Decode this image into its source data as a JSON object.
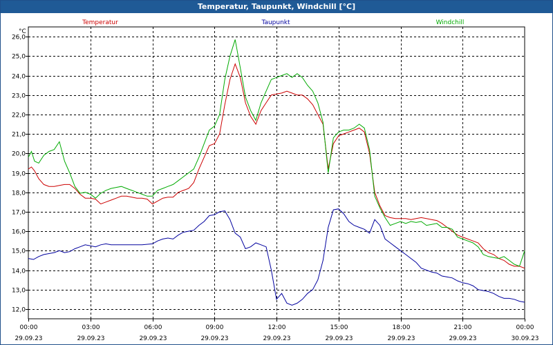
{
  "window": {
    "title": "Temperatur, Taupunkt, Windchill [°C]"
  },
  "chart_data": {
    "type": "line",
    "title": "Temperatur, Taupunkt, Windchill [°C]",
    "ylabel": "°C",
    "ylim": [
      11.5,
      26.5
    ],
    "xlim": [
      "2023-09-29 00:00",
      "2023-09-30 00:00"
    ],
    "yticks": [
      "12,0",
      "13,0",
      "14,0",
      "15,0",
      "16,0",
      "17,0",
      "18,0",
      "19,0",
      "20,0",
      "21,0",
      "22,0",
      "23,0",
      "24,0",
      "25,0",
      "26,0"
    ],
    "xticks": [
      {
        "time": "00:00",
        "date": "29.09.23"
      },
      {
        "time": "03:00",
        "date": "29.09.23"
      },
      {
        "time": "06:00",
        "date": "29.09.23"
      },
      {
        "time": "09:00",
        "date": "29.09.23"
      },
      {
        "time": "12:00",
        "date": "29.09.23"
      },
      {
        "time": "15:00",
        "date": "29.09.23"
      },
      {
        "time": "18:00",
        "date": "29.09.23"
      },
      {
        "time": "21:00",
        "date": "29.09.23"
      },
      {
        "time": "00:00",
        "date": "30.09.23"
      }
    ],
    "grid": true,
    "legend_position": "top",
    "series": [
      {
        "name": "Temperatur",
        "color": "#cc0000",
        "x": [
          0,
          0.15,
          0.3,
          0.5,
          0.75,
          1,
          1.25,
          1.5,
          1.75,
          2,
          2.25,
          2.5,
          2.75,
          3,
          3.25,
          3.5,
          3.75,
          4,
          4.25,
          4.5,
          4.75,
          5,
          5.25,
          5.5,
          5.75,
          6,
          6.25,
          6.5,
          6.75,
          7,
          7.25,
          7.5,
          7.75,
          8,
          8.25,
          8.5,
          8.75,
          9,
          9.25,
          9.5,
          9.75,
          10,
          10.25,
          10.5,
          10.75,
          11,
          11.25,
          11.5,
          11.75,
          12,
          12.25,
          12.5,
          12.75,
          13,
          13.25,
          13.5,
          13.75,
          14,
          14.25,
          14.5,
          14.75,
          15,
          15.25,
          15.5,
          15.75,
          16,
          16.25,
          16.5,
          16.75,
          17,
          17.25,
          17.5,
          17.75,
          18,
          18.25,
          18.5,
          18.75,
          19,
          19.25,
          19.5,
          19.75,
          20,
          20.25,
          20.5,
          20.75,
          21,
          21.25,
          21.5,
          21.75,
          22,
          22.25,
          22.5,
          22.75,
          23,
          23.25,
          23.5,
          23.75,
          24
        ],
        "values": [
          19.2,
          19.3,
          19.1,
          18.7,
          18.4,
          18.3,
          18.3,
          18.35,
          18.4,
          18.4,
          18.2,
          17.9,
          17.7,
          17.7,
          17.65,
          17.4,
          17.5,
          17.6,
          17.7,
          17.8,
          17.8,
          17.75,
          17.7,
          17.7,
          17.65,
          17.4,
          17.55,
          17.7,
          17.75,
          17.75,
          18.0,
          18.1,
          18.2,
          18.5,
          19.2,
          19.8,
          20.4,
          20.5,
          21.0,
          22.5,
          23.8,
          24.6,
          23.9,
          22.6,
          21.9,
          21.5,
          22.2,
          22.6,
          23.0,
          23.05,
          23.1,
          23.2,
          23.1,
          23.0,
          23.0,
          22.8,
          22.5,
          22.0,
          21.5,
          19.2,
          20.5,
          20.9,
          21.0,
          21.1,
          21.2,
          21.3,
          21.1,
          20.0,
          18.0,
          17.3,
          16.8,
          16.7,
          16.65,
          16.65,
          16.65,
          16.6,
          16.65,
          16.7,
          16.65,
          16.6,
          16.55,
          16.4,
          16.2,
          16.0,
          15.8,
          15.7,
          15.6,
          15.5,
          15.4,
          15.1,
          14.9,
          14.8,
          14.6,
          14.5,
          14.3,
          14.2,
          14.2,
          14.1
        ]
      },
      {
        "name": "Taupunkt",
        "color": "#00009e",
        "x": [
          0,
          0.25,
          0.5,
          0.75,
          1,
          1.25,
          1.5,
          1.75,
          2,
          2.25,
          2.5,
          2.75,
          3,
          3.25,
          3.5,
          3.75,
          4,
          4.5,
          5,
          5.5,
          6,
          6.25,
          6.5,
          6.75,
          7,
          7.25,
          7.5,
          7.75,
          8,
          8.25,
          8.5,
          8.75,
          9,
          9.25,
          9.5,
          9.75,
          10,
          10.25,
          10.5,
          10.75,
          11,
          11.25,
          11.5,
          11.75,
          12,
          12.25,
          12.5,
          12.75,
          13,
          13.25,
          13.5,
          13.75,
          14,
          14.25,
          14.5,
          14.75,
          15,
          15.25,
          15.5,
          15.75,
          16,
          16.25,
          16.5,
          16.75,
          17,
          17.25,
          17.5,
          17.75,
          18,
          18.25,
          18.5,
          18.75,
          19,
          19.25,
          19.5,
          19.75,
          20,
          20.25,
          20.5,
          20.75,
          21,
          21.25,
          21.5,
          21.75,
          22,
          22.25,
          22.5,
          22.75,
          23,
          23.25,
          23.5,
          23.75,
          24
        ],
        "values": [
          14.6,
          14.55,
          14.7,
          14.8,
          14.85,
          14.9,
          15.0,
          14.9,
          14.95,
          15.1,
          15.2,
          15.3,
          15.25,
          15.2,
          15.3,
          15.35,
          15.3,
          15.3,
          15.3,
          15.3,
          15.35,
          15.5,
          15.6,
          15.65,
          15.6,
          15.8,
          15.95,
          16.0,
          16.05,
          16.3,
          16.5,
          16.8,
          16.85,
          17.0,
          17.05,
          16.6,
          15.9,
          15.7,
          15.1,
          15.2,
          15.4,
          15.3,
          15.2,
          14.0,
          12.5,
          12.8,
          12.3,
          12.2,
          12.3,
          12.5,
          12.8,
          13.0,
          13.5,
          14.5,
          16.2,
          17.1,
          17.15,
          16.9,
          16.5,
          16.3,
          16.2,
          16.1,
          15.9,
          16.6,
          16.3,
          15.6,
          15.4,
          15.2,
          15.0,
          14.8,
          14.6,
          14.4,
          14.1,
          14.0,
          13.9,
          13.85,
          13.7,
          13.65,
          13.6,
          13.45,
          13.35,
          13.3,
          13.2,
          13.0,
          12.95,
          12.9,
          12.8,
          12.65,
          12.55,
          12.55,
          12.5,
          12.4,
          12.35
        ]
      },
      {
        "name": "Windchill",
        "color": "#00aa00",
        "x": [
          0,
          0.15,
          0.3,
          0.5,
          0.75,
          1,
          1.25,
          1.5,
          1.75,
          2,
          2.25,
          2.5,
          2.75,
          3,
          3.25,
          3.5,
          3.75,
          4,
          4.25,
          4.5,
          4.75,
          5,
          5.25,
          5.5,
          5.75,
          6,
          6.25,
          6.5,
          6.75,
          7,
          7.25,
          7.5,
          7.75,
          8,
          8.25,
          8.5,
          8.75,
          9,
          9.25,
          9.5,
          9.75,
          10,
          10.25,
          10.5,
          10.75,
          11,
          11.25,
          11.5,
          11.75,
          12,
          12.25,
          12.5,
          12.75,
          13,
          13.25,
          13.5,
          13.75,
          14,
          14.25,
          14.5,
          14.75,
          15,
          15.25,
          15.5,
          15.75,
          16,
          16.25,
          16.5,
          16.75,
          17,
          17.25,
          17.5,
          17.75,
          18,
          18.25,
          18.5,
          18.75,
          19,
          19.25,
          19.5,
          19.75,
          20,
          20.25,
          20.5,
          20.75,
          21,
          21.25,
          21.5,
          21.75,
          22,
          22.25,
          22.5,
          22.75,
          23,
          23.25,
          23.5,
          23.75,
          24
        ],
        "values": [
          19.8,
          20.1,
          19.6,
          19.5,
          19.9,
          20.1,
          20.2,
          20.6,
          19.6,
          19.0,
          18.3,
          17.95,
          18.0,
          17.9,
          17.7,
          17.95,
          18.1,
          18.2,
          18.25,
          18.3,
          18.2,
          18.1,
          18.0,
          17.9,
          17.8,
          17.8,
          18.1,
          18.2,
          18.3,
          18.4,
          18.6,
          18.8,
          19.0,
          19.2,
          19.8,
          20.5,
          21.2,
          21.4,
          22.0,
          23.8,
          25.0,
          25.85,
          24.4,
          22.9,
          22.2,
          21.7,
          22.6,
          23.2,
          23.8,
          23.9,
          24.0,
          24.1,
          23.9,
          24.1,
          23.9,
          23.5,
          23.2,
          22.6,
          21.6,
          19.0,
          20.8,
          21.1,
          21.2,
          21.2,
          21.3,
          21.5,
          21.3,
          20.2,
          17.8,
          17.2,
          16.7,
          16.3,
          16.4,
          16.5,
          16.4,
          16.5,
          16.45,
          16.5,
          16.3,
          16.35,
          16.4,
          16.2,
          16.2,
          16.1,
          15.7,
          15.6,
          15.5,
          15.4,
          15.2,
          14.8,
          14.7,
          14.65,
          14.6,
          14.7,
          14.5,
          14.3,
          14.2,
          15.0
        ]
      }
    ]
  }
}
